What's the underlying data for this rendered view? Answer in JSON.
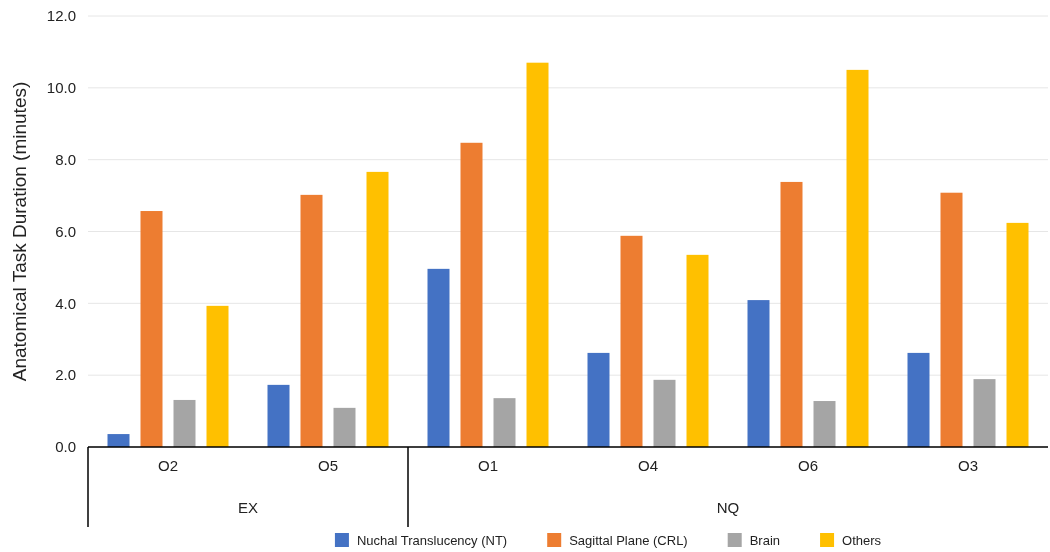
{
  "chart_data": {
    "type": "bar",
    "ylabel": "Anatomical Task Duration (minutes)",
    "categories": [
      "O2",
      "O5",
      "O1",
      "O4",
      "O6",
      "O3"
    ],
    "series": [
      {
        "name": "Nuchal Translucency (NT)",
        "color": "#4472c4",
        "values": [
          0.36,
          1.73,
          4.96,
          2.62,
          4.09,
          2.62
        ]
      },
      {
        "name": "Sagittal Plane (CRL)",
        "color": "#ed7d31",
        "values": [
          6.57,
          7.02,
          8.47,
          5.88,
          7.38,
          7.08
        ]
      },
      {
        "name": "Brain",
        "color": "#a5a5a5",
        "values": [
          1.31,
          1.09,
          1.36,
          1.87,
          1.28,
          1.89
        ]
      },
      {
        "name": "Others",
        "color": "#ffc000",
        "values": [
          3.93,
          7.66,
          10.7,
          5.35,
          10.5,
          6.24
        ]
      }
    ],
    "annotations": [
      "EX",
      "NQ"
    ],
    "ylim": [
      0,
      12
    ],
    "yticks": [
      {
        "value": 0,
        "label": "0.0"
      },
      {
        "value": 2,
        "label": "2.0"
      },
      {
        "value": 4,
        "label": "4.0"
      },
      {
        "value": 6,
        "label": "6.0"
      },
      {
        "value": 8,
        "label": "8.0"
      },
      {
        "value": 10,
        "label": "10.0"
      },
      {
        "value": 12,
        "label": "12.0"
      }
    ],
    "grid": "y",
    "legend": "bottom"
  }
}
